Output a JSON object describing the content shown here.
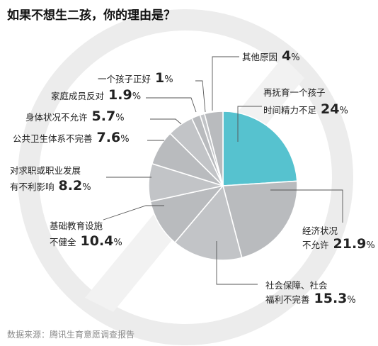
{
  "chart_data": {
    "type": "pie",
    "title": "如果不想生二孩，你的理由是？",
    "source": "数据来源：腾讯生育意愿调查报告",
    "unit": "%",
    "slices": [
      {
        "key": "time-energy",
        "lines": [
          "再抚育一个孩子",
          "时间精力不足"
        ],
        "value": 24,
        "value_text": "24",
        "color": "#56c2cf"
      },
      {
        "key": "economic",
        "lines": [
          "经济状况",
          "不允许"
        ],
        "value": 21.9,
        "value_text": "21.9",
        "color": "#b9bbbe"
      },
      {
        "key": "social-security",
        "lines": [
          "社会保障、社会",
          "福利不完善"
        ],
        "value": 15.3,
        "value_text": "15.3",
        "color": "#c2c4c7"
      },
      {
        "key": "education",
        "lines": [
          "基础教育设施",
          "不健全"
        ],
        "value": 10.4,
        "value_text": "10.4",
        "color": "#b9bbbe"
      },
      {
        "key": "career",
        "lines": [
          "对求职或职业发展",
          "有不利影响"
        ],
        "value": 8.2,
        "value_text": "8.2",
        "color": "#c2c4c7"
      },
      {
        "key": "public-health",
        "lines": [
          "公共卫生体系不完善"
        ],
        "value": 7.6,
        "value_text": "7.6",
        "color": "#b9bbbe"
      },
      {
        "key": "health",
        "lines": [
          "身体状况不允许"
        ],
        "value": 5.7,
        "value_text": "5.7",
        "color": "#c2c4c7"
      },
      {
        "key": "family-oppose",
        "lines": [
          "家庭成员反对"
        ],
        "value": 1.9,
        "value_text": "1.9",
        "color": "#b9bbbe"
      },
      {
        "key": "one-child-ok",
        "lines": [
          "一个孩子正好"
        ],
        "value": 1,
        "value_text": "1",
        "color": "#c2c4c7"
      },
      {
        "key": "other",
        "lines": [
          "其他原因"
        ],
        "value": 4,
        "value_text": "4",
        "color": "#b9bbbe"
      }
    ]
  }
}
